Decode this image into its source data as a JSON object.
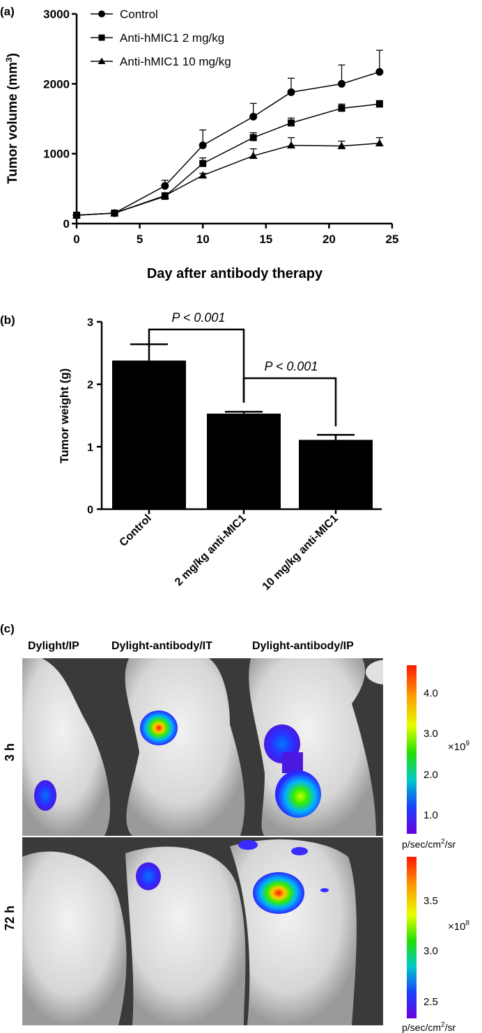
{
  "panel_a": {
    "label": "(a)",
    "chart_data": {
      "type": "line",
      "x": [
        0,
        3,
        7,
        10,
        14,
        17,
        21,
        24
      ],
      "xlim": [
        0,
        25
      ],
      "ylim": [
        0,
        3000
      ],
      "xticks": [
        0,
        5,
        10,
        15,
        20,
        25
      ],
      "yticks": [
        0,
        1000,
        2000,
        3000
      ],
      "xlabel": "Day after antibody therapy",
      "ylabel_main": "Tumor volume (mm",
      "ylabel_sup": "3",
      "ylabel_end": ")",
      "legend_position": "top-left",
      "series": [
        {
          "name": "Control",
          "marker": "circle",
          "values": [
            120,
            150,
            540,
            1120,
            1530,
            1880,
            2000,
            2170
          ],
          "errors": [
            0,
            0,
            80,
            220,
            190,
            200,
            270,
            310
          ]
        },
        {
          "name": "Anti-hMIC1  2 mg/kg",
          "marker": "square",
          "values": [
            120,
            150,
            390,
            860,
            1230,
            1440,
            1650,
            1710
          ],
          "errors": [
            0,
            0,
            50,
            80,
            70,
            70,
            60,
            50
          ]
        },
        {
          "name": "Anti-hMIC1 10 mg/kg",
          "marker": "triangle",
          "values": [
            120,
            150,
            400,
            690,
            970,
            1120,
            1110,
            1150
          ],
          "errors": [
            0,
            0,
            40,
            30,
            100,
            110,
            70,
            80
          ]
        }
      ]
    }
  },
  "panel_b": {
    "label": "(b)",
    "chart_data": {
      "type": "bar",
      "categories": [
        "Control",
        "2 mg/kg anti-MIC1",
        "10 mg/kg anti-MIC1"
      ],
      "values": [
        2.38,
        1.53,
        1.11
      ],
      "errors": [
        0.26,
        0.03,
        0.08
      ],
      "ylim": [
        0,
        3
      ],
      "yticks": [
        0,
        1,
        2,
        3
      ],
      "ylabel": "Tumor weight  (g)",
      "significance": [
        {
          "from": 0,
          "to": 1,
          "label": "P < 0.001"
        },
        {
          "from": 1,
          "to": 2,
          "label": "P < 0.001"
        }
      ]
    }
  },
  "panel_c": {
    "label": "(c)",
    "columns": [
      "Dylight/IP",
      "Dylight-antibody/IT",
      "Dylight-antibody/IP"
    ],
    "rows": [
      "3 h",
      "72 h"
    ],
    "scale_top": {
      "ticks": [
        "4.0",
        "3.0",
        "2.0",
        "1.0"
      ],
      "exponent_base": "×10",
      "exponent": "9",
      "unit_main": "p/sec/cm",
      "unit_sup": "2",
      "unit_end": "/sr"
    },
    "scale_bottom": {
      "ticks": [
        "3.5",
        "3.0",
        "2.5"
      ],
      "exponent_base": "×10",
      "exponent": "8",
      "unit_main": "p/sec/cm",
      "unit_sup": "2",
      "unit_end": "/sr"
    }
  }
}
